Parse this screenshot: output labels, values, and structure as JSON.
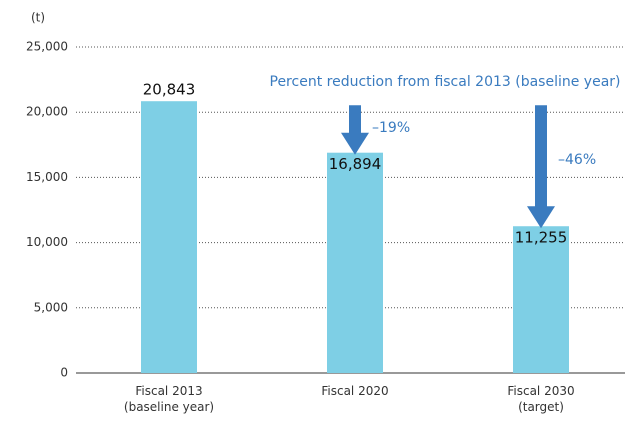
{
  "chart_data": {
    "type": "bar",
    "y_axis_label": "(t)",
    "categories": [
      "Fiscal 2013\n(baseline year)",
      "Fiscal 2020",
      "Fiscal 2030\n(target)"
    ],
    "values": [
      20843,
      16894,
      11255
    ],
    "value_labels": [
      "20,843",
      "16,894",
      "11,255"
    ],
    "color": "#7ecfe5",
    "ylim": [
      0,
      25000
    ],
    "yticks": [
      0,
      {
        "value": 5000,
        "label": "5,000"
      },
      {
        "value": 10000,
        "label": "10,000"
      },
      {
        "value": 15000,
        "label": "15,000"
      },
      {
        "value": 20000,
        "label": "20,000"
      },
      {
        "value": 25000,
        "label": "25,000"
      }
    ],
    "grid": true,
    "annotations": [
      "Percent reduction from fiscal 2013 (baseline year)",
      "–19%",
      "–46%"
    ],
    "annotation_color": "#3a7bbf"
  }
}
